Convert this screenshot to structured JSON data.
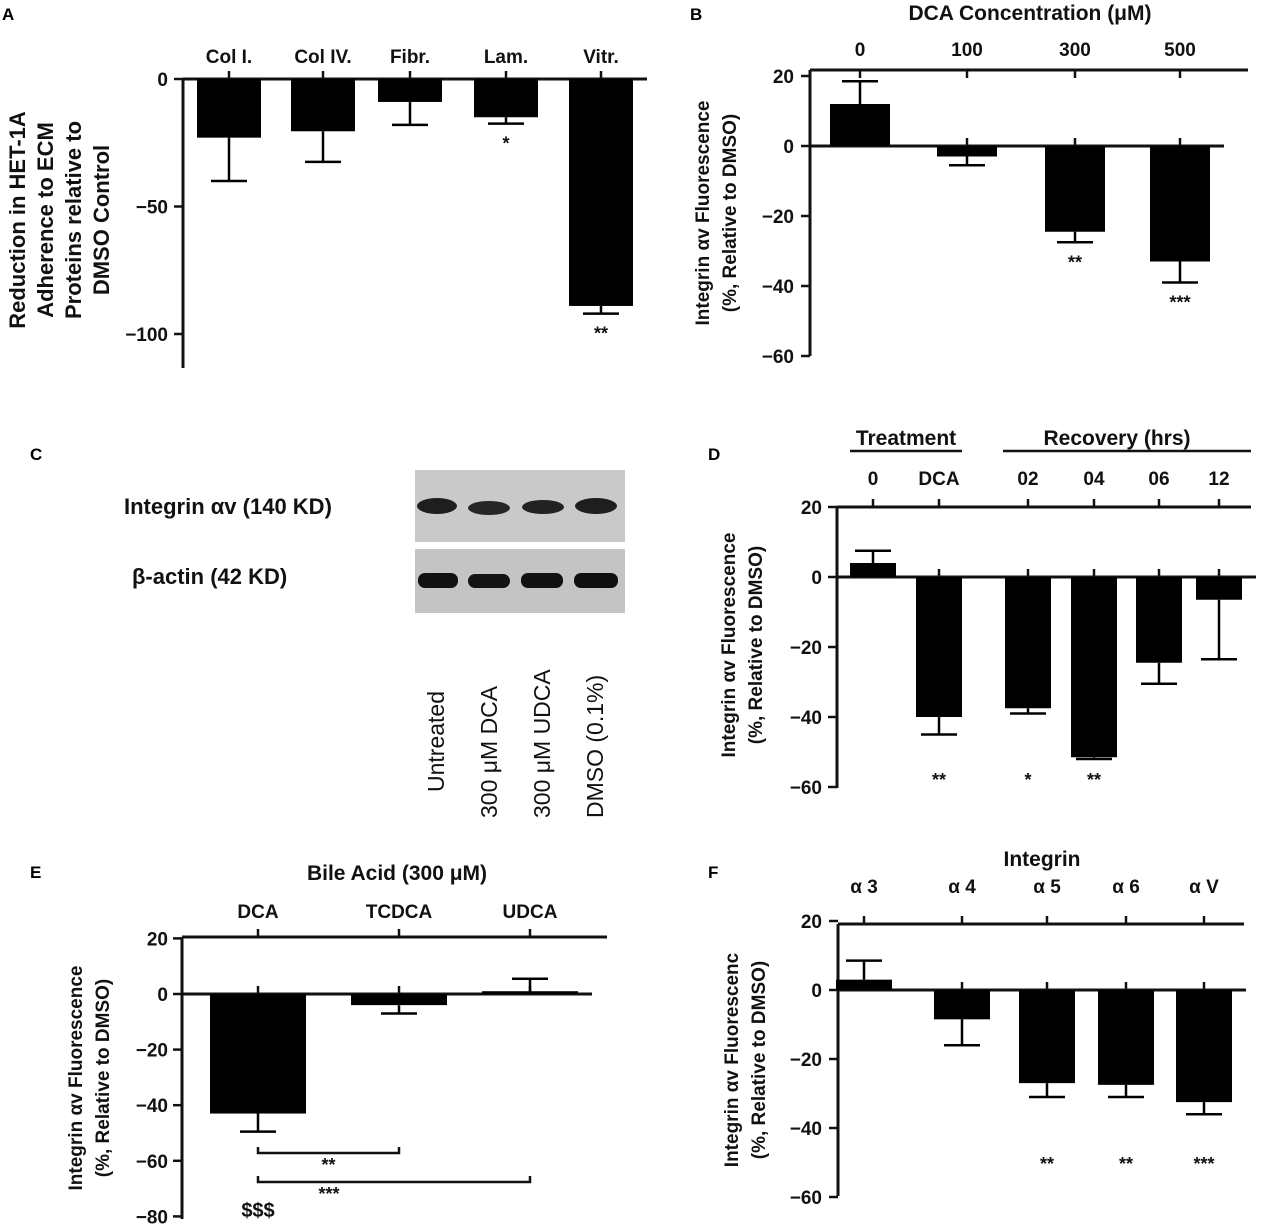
{
  "panel_letters": {
    "A": "A",
    "B": "B",
    "C": "C",
    "D": "D",
    "E": "E",
    "F": "F"
  },
  "panel_c": {
    "band_labels": [
      "Integrin αv (140 KD)",
      "β-actin (42 KD)"
    ],
    "lanes": [
      "Untreated",
      "300 μM DCA",
      "300 μM UDCA",
      "DMSO (0.1%)"
    ]
  },
  "chart_data": [
    {
      "panel": "A",
      "type": "bar",
      "title": "",
      "xlabel": "",
      "ylabel": "Reduction in HET-1A Adherence to ECM Proteins relative to DMSO Control",
      "ylabel_lines": [
        "Reduction in HET-1A",
        "Adherence to ECM",
        "Proteins relative to",
        "DMSO Control"
      ],
      "categories": [
        "Col I.",
        "Col IV.",
        "Fibr.",
        "Lam.",
        "Vitr."
      ],
      "values": [
        -23,
        -20.5,
        -9,
        -15,
        -89
      ],
      "errors": [
        17,
        12,
        9,
        2.5,
        3
      ],
      "significance": [
        "",
        "",
        "",
        "*",
        "**"
      ],
      "ylim": [
        -113,
        0
      ],
      "yticks": [
        0,
        -50,
        -100
      ],
      "ytick_labels": [
        "0",
        "−50",
        "−100"
      ],
      "grid": false,
      "category_axis": "top"
    },
    {
      "panel": "B",
      "type": "bar",
      "title": "DCA Concentration (μM)",
      "xlabel": "DCA Concentration (μM)",
      "ylabel": "Integrin αv Fluorescence (%, Relative to DMSO)",
      "ylabel_lines": [
        "Integrin αv Fluorescence",
        "(%, Relative to DMSO)"
      ],
      "categories": [
        "0",
        "100",
        "300",
        "500"
      ],
      "values": [
        12,
        -3,
        -24.5,
        -33
      ],
      "errors": [
        6.5,
        2.5,
        3,
        6
      ],
      "significance": [
        "",
        "",
        "**",
        "***"
      ],
      "ylim": [
        -60,
        22
      ],
      "yticks": [
        20,
        0,
        -20,
        -40,
        -60
      ],
      "ytick_labels": [
        "20",
        "0",
        "−20",
        "−40",
        "−60"
      ],
      "grid": false,
      "category_axis": "top"
    },
    {
      "panel": "D",
      "type": "bar",
      "title": "",
      "xlabel": "",
      "ylabel": "Integrin αv Fluorescence (%, Relative to DMSO)",
      "ylabel_lines": [
        "Integrin αv Fluorescence",
        "(%, Relative to DMSO)"
      ],
      "group_labels": [
        "Treatment",
        "Recovery (hrs)"
      ],
      "categories": [
        "0",
        "DCA",
        "02",
        "04",
        "06",
        "12"
      ],
      "values": [
        4,
        -40,
        -37.5,
        -51.5,
        -24.5,
        -6.5
      ],
      "errors": [
        3.5,
        5,
        1.5,
        0.5,
        6,
        17
      ],
      "significance": [
        "",
        "**",
        "*",
        "**",
        "",
        ""
      ],
      "ylim": [
        -60,
        20
      ],
      "yticks": [
        20,
        0,
        -20,
        -40,
        -60
      ],
      "ytick_labels": [
        "20",
        "0",
        "−20",
        "−40",
        "−60"
      ],
      "grid": false,
      "category_axis": "top"
    },
    {
      "panel": "E",
      "type": "bar",
      "title": "Bile Acid (300 μM)",
      "xlabel": "Bile Acid (300 μM)",
      "ylabel": "Integrin αv Fluorescence (%, Relative to DMSO)",
      "ylabel_lines": [
        "Integrin αv Fluorescence",
        "(%, Relative to DMSO)"
      ],
      "categories": [
        "DCA",
        "TCDCA",
        "UDCA"
      ],
      "values": [
        -43,
        -4,
        1
      ],
      "errors": [
        6.5,
        3,
        4.5
      ],
      "significance": [
        "$$$",
        "",
        ""
      ],
      "comparisons": [
        {
          "from": "DCA",
          "to": "TCDCA",
          "label": "**"
        },
        {
          "from": "DCA",
          "to": "UDCA",
          "label": "***"
        }
      ],
      "ylim": [
        -80,
        25
      ],
      "yticks": [
        20,
        0,
        -20,
        -40,
        -60,
        -80
      ],
      "ytick_labels": [
        "20",
        "0",
        "−20",
        "−40",
        "−60",
        "−80"
      ],
      "grid": false,
      "category_axis": "top"
    },
    {
      "panel": "F",
      "type": "bar",
      "title": "Integrin",
      "xlabel": "Integrin",
      "ylabel": "Integrin αv Fluorescenc (%, Relative to DMSO)",
      "ylabel_lines": [
        "Integrin αv Fluorescenc",
        "(%, Relative to DMSO)"
      ],
      "categories": [
        "α 3",
        "α 4",
        "α 5",
        "α 6",
        "α V"
      ],
      "values": [
        3,
        -8.5,
        -27,
        -27.5,
        -32.5
      ],
      "errors": [
        5.5,
        7.5,
        4,
        3.5,
        3.5
      ],
      "significance": [
        "",
        "",
        "**",
        "**",
        "***"
      ],
      "ylim": [
        -60,
        22
      ],
      "yticks": [
        20,
        0,
        -20,
        -40,
        -60
      ],
      "ytick_labels": [
        "20",
        "0",
        "−20",
        "−40",
        "−60"
      ],
      "grid": false,
      "category_axis": "top"
    }
  ]
}
